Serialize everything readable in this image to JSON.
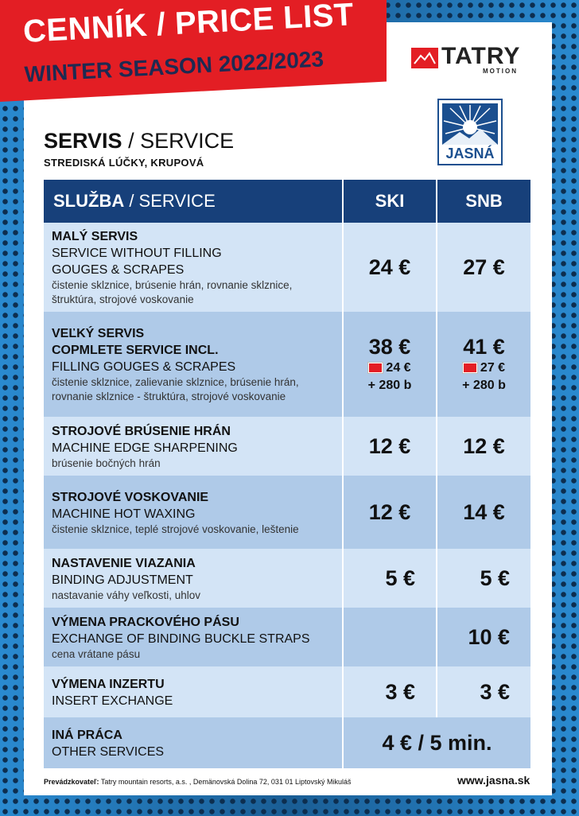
{
  "banner": {
    "title": "CENNÍK / PRICE LIST",
    "subtitle": "WINTER SEASON 2022/2023"
  },
  "brand": {
    "tatry": "TATRY",
    "tatry_sub": "MOTION",
    "jasna": "JASNÁ"
  },
  "section": {
    "title_bold": "SERVIS",
    "title_rest": " / SERVICE",
    "location": "STREDISKÁ LÚČKY, KRUPOVÁ"
  },
  "table": {
    "header_bold": "SLUŽBA",
    "header_rest": " / SERVICE",
    "col_ski": "SKI",
    "col_snb": "SNB",
    "rows": [
      {
        "sk": "MALÝ SERVIS",
        "en1": "SERVICE WITHOUT FILLING",
        "en2": "GOUGES & SCRAPES",
        "desc": "čistenie sklznice, brúsenie hrán, rovnanie sklznice, štruktúra, strojové voskovanie",
        "ski": "24 €",
        "snb": "27 €"
      },
      {
        "sk": "VEĽKÝ SERVIS",
        "en1": "COPMLETE SERVICE INCL.",
        "en2": "FILLING GOUGES & SCRAPES",
        "desc": "čistenie sklznice, zalievanie sklznice, brúsenie hrán, rovnanie sklznice - štruktúra, strojové voskovanie",
        "ski": "38 €",
        "snb": "41 €",
        "ski_card": "24 €",
        "snb_card": "27 €",
        "ski_pts": "+ 280 b",
        "snb_pts": "+ 280 b"
      },
      {
        "sk": "STROJOVÉ BRÚSENIE HRÁN",
        "en1": "MACHINE EDGE SHARPENING",
        "desc": "brúsenie bočných hrán",
        "ski": "12 €",
        "snb": "12 €"
      },
      {
        "sk": "STROJOVÉ VOSKOVANIE",
        "en1": "MACHINE HOT WAXING",
        "desc": "čistenie sklznice, teplé strojové voskovanie, leštenie",
        "ski": "12 €",
        "snb": "14 €"
      },
      {
        "sk": "NASTAVENIE VIAZANIA",
        "en1": "BINDING ADJUSTMENT",
        "desc": "nastavanie váhy veľkosti, uhlov",
        "ski": "5 €",
        "snb": "5 €"
      },
      {
        "sk": "VÝMENA PRACKOVÉHO PÁSU",
        "en1": "EXCHANGE OF BINDING BUCKLE STRAPS",
        "desc": "cena vrátane pásu",
        "ski": "",
        "snb": "10 €"
      },
      {
        "sk": "VÝMENA INZERTU",
        "en1": "INSERT EXCHANGE",
        "ski": "3 €",
        "snb": "3 €"
      },
      {
        "sk": "INÁ PRÁCA",
        "en1": "OTHER SERVICES",
        "both": "4 € / 5 min."
      }
    ]
  },
  "footer": {
    "operator_label": "Prevádzkovateľ:",
    "operator": " Tatry mountain resorts, a.s. , Demänovská Dolina 72, 031 01 Liptovský Mikuláš",
    "url": "www.jasna.sk"
  },
  "colors": {
    "red": "#e31e24",
    "navy": "#17407a",
    "row_light": "#d3e4f6",
    "row_dark": "#afcae8"
  }
}
